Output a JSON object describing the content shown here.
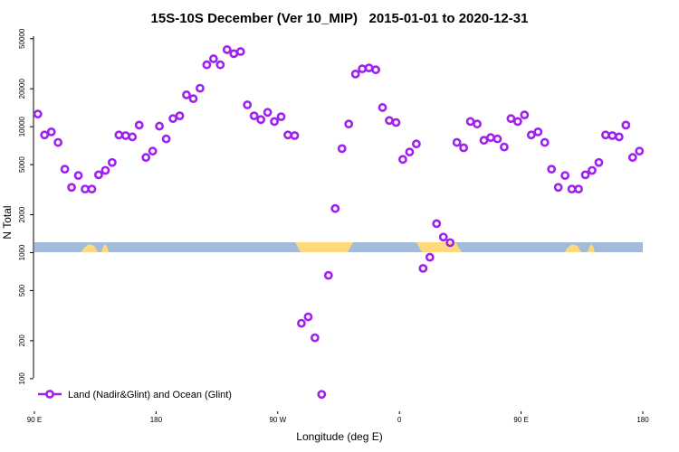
{
  "chart_data": {
    "type": "scatter",
    "title": "15S-10S December (Ver 10_MIP)   2015-01-01 to 2020-12-31",
    "x_label": "Longitude (deg E)",
    "y_label": "N Total",
    "ylog": true,
    "xlim": [
      90,
      540
    ],
    "ylim": [
      55,
      55000
    ],
    "xticks": [
      {
        "value": 90,
        "label": "90 E"
      },
      180,
      {
        "value": 270,
        "label": "90 W"
      },
      {
        "value": 360,
        "label": "0"
      },
      {
        "value": 450,
        "label": "90 E"
      },
      {
        "value": 540,
        "label": "180"
      }
    ],
    "yticks": [
      100,
      200,
      500,
      1000,
      2000,
      5000,
      10000,
      20000,
      50000
    ],
    "legend_position": "lower left",
    "series": [
      {
        "name": "Land (Nadir&Glint) and Ocean (Glint)",
        "color": "#a020f0",
        "x": [
          92.5,
          97.5,
          102.5,
          107.5,
          112.5,
          117.5,
          122.5,
          127.5,
          132.5,
          137.5,
          142.5,
          147.5,
          152.5,
          157.5,
          162.5,
          167.5,
          172.5,
          177.5,
          182.5,
          187.5,
          192.5,
          197.5,
          202.5,
          207.5,
          212.5,
          217.5,
          222.5,
          227.5,
          232.5,
          237.5,
          242.5,
          247.5,
          252.5,
          257.5,
          262.5,
          267.5,
          272.5,
          277.5,
          282.5,
          287.5,
          292.5,
          297.5,
          302.5,
          307.5,
          312.5,
          317.5,
          322.5,
          327.5,
          332.5,
          337.5,
          342.5,
          347.5,
          352.5,
          357.5,
          362.5,
          367.5,
          372.5,
          377.5,
          382.5,
          387.5,
          392.5,
          397.5,
          402.5,
          407.5,
          412.5,
          417.5,
          422.5,
          427.5,
          432.5,
          437.5,
          442.5,
          447.5,
          452.5,
          457.5,
          462.5,
          467.5,
          472.5,
          477.5,
          482.5,
          487.5,
          492.5,
          497.5,
          502.5,
          507.5,
          512.5,
          517.5,
          522.5,
          527.5,
          532.5,
          537.5
        ],
        "values": [
          12600,
          8600,
          9100,
          7500,
          4600,
          3300,
          4100,
          3200,
          3200,
          4150,
          4500,
          5200,
          8600,
          8500,
          8300,
          10300,
          5700,
          6400,
          10100,
          8000,
          11600,
          12200,
          17900,
          16700,
          20200,
          31000,
          34600,
          31000,
          40900,
          38000,
          39500,
          14900,
          12200,
          11400,
          13000,
          11000,
          12000,
          8600,
          8500,
          275,
          309,
          211,
          75,
          660,
          2240,
          6700,
          10500,
          26200,
          28800,
          29300,
          28300,
          14200,
          11200,
          10800,
          5500,
          6300,
          7300,
          750,
          920,
          1700,
          1330,
          1200,
          7500,
          6800,
          11000,
          10500,
          7800,
          8200,
          8000,
          6900,
          11600,
          11000,
          12400,
          8600,
          9100,
          7500,
          4600,
          3300,
          4100,
          3200,
          3200,
          4150,
          4500,
          5200,
          8600,
          8500,
          8300,
          10300,
          5700,
          6400
        ]
      }
    ]
  }
}
